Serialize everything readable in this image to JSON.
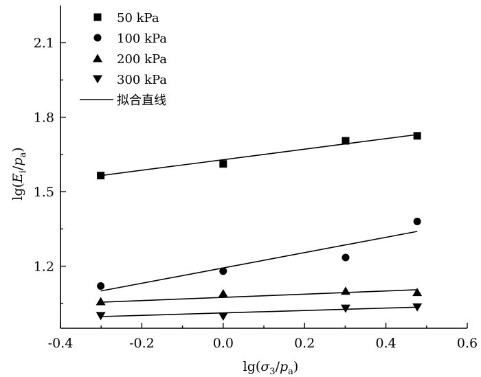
{
  "chart_data": {
    "type": "scatter",
    "title": "",
    "xlabel": {
      "prefix": "lg(",
      "sym1": "σ",
      "sub1": "3",
      "slash": "/",
      "sym2": "p",
      "sub2": "a",
      "suffix": ")"
    },
    "ylabel": {
      "prefix": "lg(",
      "sym1": "E",
      "sub1": "i",
      "slash": "/",
      "sym2": "p",
      "sub2": "a",
      "suffix": ")"
    },
    "xlim": [
      -0.4,
      0.6
    ],
    "ylim": [
      0.95,
      2.25
    ],
    "x_ticks": [
      -0.4,
      -0.2,
      0.0,
      0.2,
      0.4,
      0.6
    ],
    "x_tick_labels": [
      "-0.4",
      "-0.2",
      "0.0",
      "0.2",
      "0.4",
      "0.6"
    ],
    "y_ticks": [
      1.2,
      1.5,
      1.8,
      2.1
    ],
    "y_tick_labels": [
      "1.2",
      "1.5",
      "1.8",
      "2.1"
    ],
    "grid": false,
    "legend_position": "top-left",
    "series": [
      {
        "name": "50 kPa",
        "marker": "square",
        "x": [
          -0.301,
          0.0,
          0.301,
          0.477
        ],
        "y": [
          1.565,
          1.612,
          1.705,
          1.725
        ]
      },
      {
        "name": "100 kPa",
        "marker": "circle",
        "x": [
          -0.301,
          0.0,
          0.301,
          0.477
        ],
        "y": [
          1.12,
          1.18,
          1.235,
          1.38
        ]
      },
      {
        "name": "200 kPa",
        "marker": "triangle-up",
        "x": [
          -0.301,
          0.0,
          0.301,
          0.477
        ],
        "y": [
          1.058,
          1.09,
          1.1,
          1.095
        ]
      },
      {
        "name": "300 kPa",
        "marker": "triangle-down",
        "x": [
          -0.301,
          0.0,
          0.301,
          0.477
        ],
        "y": [
          1.0,
          0.998,
          1.03,
          1.035
        ]
      }
    ],
    "fit_label": "拟合直线",
    "fit_lines": [
      {
        "x": [
          -0.301,
          0.477
        ],
        "y": [
          1.565,
          1.73
        ]
      },
      {
        "x": [
          -0.301,
          0.477
        ],
        "y": [
          1.1,
          1.34
        ]
      },
      {
        "x": [
          -0.301,
          0.477
        ],
        "y": [
          1.055,
          1.105
        ]
      },
      {
        "x": [
          -0.301,
          0.477
        ],
        "y": [
          0.997,
          1.035
        ]
      }
    ]
  }
}
